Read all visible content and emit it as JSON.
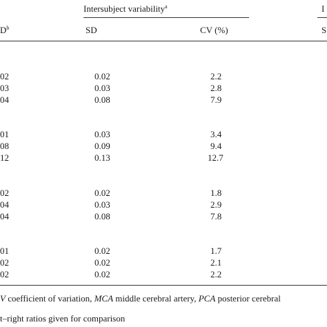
{
  "header": {
    "group_title": "Intersubject variability",
    "group_title_sup": "a",
    "right_group_title_fragment": "I",
    "left_col_fragment": "D",
    "left_col_sup": "b",
    "sd_label": "SD",
    "cv_label": "CV (%)",
    "right_sub_fragment": "S"
  },
  "groups": [
    {
      "rows": [
        {
          "left": "02",
          "sd": "0.02",
          "cv": "2.2"
        },
        {
          "left": "03",
          "sd": "0.03",
          "cv": "2.8"
        },
        {
          "left": "04",
          "sd": "0.08",
          "cv": "7.9"
        }
      ]
    },
    {
      "rows": [
        {
          "left": "01",
          "sd": "0.03",
          "cv": "3.4"
        },
        {
          "left": "08",
          "sd": "0.09",
          "cv": "9.4"
        },
        {
          "left": "12",
          "sd": "0.13",
          "cv": "12.7"
        }
      ]
    },
    {
      "rows": [
        {
          "left": "02",
          "sd": "0.02",
          "cv": "1.8"
        },
        {
          "left": "04",
          "sd": "0.03",
          "cv": "2.9"
        },
        {
          "left": "04",
          "sd": "0.08",
          "cv": "7.8"
        }
      ]
    },
    {
      "rows": [
        {
          "left": "01",
          "sd": "0.02",
          "cv": "1.7"
        },
        {
          "left": "02",
          "sd": "0.02",
          "cv": "2.1"
        },
        {
          "left": "02",
          "sd": "0.02",
          "cv": "2.2"
        }
      ]
    }
  ],
  "footnotes": {
    "line1_prefix": "V",
    "line1_abbr1": "coefficient of variation,",
    "mca_abbr": "MCA",
    "mca_text": "middle cerebral artery,",
    "pca_abbr": "PCA",
    "pca_text": "posterior cerebral",
    "line2": "t–right ratios given for comparison"
  }
}
